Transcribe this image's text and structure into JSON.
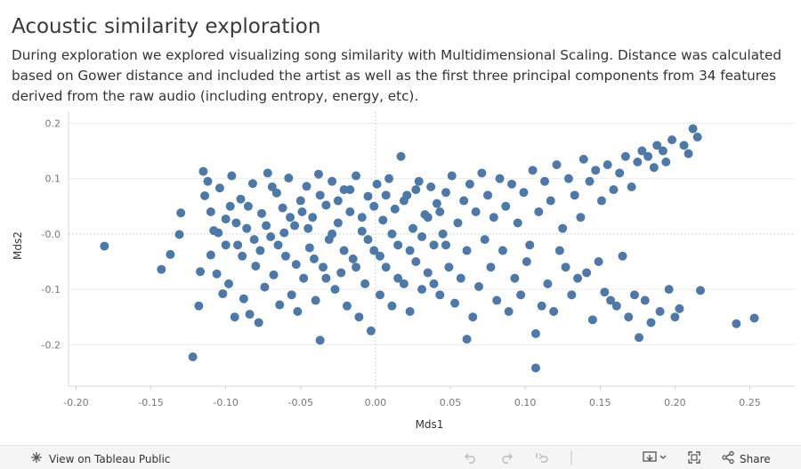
{
  "title": "Acoustic similarity exploration",
  "subtitle": "During exploration we  explored visualizing song similarity with Multidimensional Scaling. Distance was calculated based on Gower distance and included the artist as well as the first three principal components from 34 features derived from the raw audio (including entropy, energy, etc).",
  "footer": {
    "view_label": "View on Tableau Public",
    "share_label": "Share",
    "icons": [
      "tableau-icon",
      "undo-icon",
      "redo-icon",
      "revert-icon",
      "download-icon",
      "fullscreen-icon",
      "share-icon"
    ]
  },
  "colors": {
    "point": "#4e79a7",
    "grid": "#ebebeb",
    "zero": "#d0d0d0"
  },
  "chart_data": {
    "type": "scatter",
    "xlabel": "Mds1",
    "ylabel": "Mds2",
    "xlim": [
      -0.205,
      0.28
    ],
    "ylim": [
      -0.275,
      0.22
    ],
    "xticks": [
      -0.2,
      -0.15,
      -0.1,
      -0.05,
      0.0,
      0.05,
      0.1,
      0.15,
      0.2,
      0.25
    ],
    "xtick_labels": [
      "-0.20",
      "-0.15",
      "-0.10",
      "-0.05",
      "0.00",
      "0.05",
      "0.10",
      "0.15",
      "0.20",
      "0.25"
    ],
    "yticks": [
      0.2,
      0.1,
      0.0,
      -0.1,
      -0.2
    ],
    "ytick_labels": [
      "0.2",
      "0.1",
      "-0.0",
      "-0.1",
      "-0.2"
    ],
    "grid": true,
    "points": [
      [
        -0.181,
        -0.022
      ],
      [
        -0.143,
        -0.064
      ],
      [
        -0.137,
        -0.037
      ],
      [
        -0.131,
        -0.001
      ],
      [
        -0.13,
        0.038
      ],
      [
        -0.122,
        -0.222
      ],
      [
        -0.118,
        -0.13
      ],
      [
        -0.117,
        -0.068
      ],
      [
        -0.115,
        0.113
      ],
      [
        -0.114,
        0.069
      ],
      [
        -0.112,
        0.095
      ],
      [
        -0.11,
        -0.038
      ],
      [
        -0.108,
        0.006
      ],
      [
        -0.106,
        -0.072
      ],
      [
        -0.104,
        0.083
      ],
      [
        -0.102,
        -0.108
      ],
      [
        -0.1,
        0.027
      ],
      [
        -0.098,
        -0.09
      ],
      [
        -0.096,
        0.105
      ],
      [
        -0.094,
        -0.15
      ],
      [
        -0.092,
        -0.02
      ],
      [
        -0.09,
        0.063
      ],
      [
        -0.088,
        -0.117
      ],
      [
        -0.086,
        0.01
      ],
      [
        -0.084,
        -0.145
      ],
      [
        -0.082,
        0.091
      ],
      [
        -0.08,
        -0.058
      ],
      [
        -0.078,
        -0.16
      ],
      [
        -0.076,
        0.037
      ],
      [
        -0.074,
        -0.096
      ],
      [
        -0.072,
        0.11
      ],
      [
        -0.07,
        -0.005
      ],
      [
        -0.068,
        -0.074
      ],
      [
        -0.066,
        0.074
      ],
      [
        -0.064,
        -0.128
      ],
      [
        -0.062,
        0.047
      ],
      [
        -0.06,
        -0.04
      ],
      [
        -0.058,
        0.101
      ],
      [
        -0.056,
        -0.11
      ],
      [
        -0.054,
        0.015
      ],
      [
        -0.052,
        -0.14
      ],
      [
        -0.05,
        0.06
      ],
      [
        -0.048,
        -0.08
      ],
      [
        -0.046,
        0.086
      ],
      [
        -0.044,
        -0.025
      ],
      [
        -0.042,
        0.03
      ],
      [
        -0.04,
        -0.12
      ],
      [
        -0.038,
        0.108
      ],
      [
        -0.037,
        -0.192
      ],
      [
        -0.035,
        -0.06
      ],
      [
        -0.033,
        0.052
      ],
      [
        -0.031,
        -0.01
      ],
      [
        -0.029,
        0.095
      ],
      [
        -0.027,
        -0.1
      ],
      [
        -0.025,
        0.02
      ],
      [
        -0.023,
        -0.07
      ],
      [
        -0.021,
        0.08
      ],
      [
        -0.019,
        -0.13
      ],
      [
        -0.017,
        0.04
      ],
      [
        -0.015,
        -0.045
      ],
      [
        -0.013,
        0.105
      ],
      [
        -0.011,
        -0.15
      ],
      [
        -0.009,
        0.005
      ],
      [
        -0.007,
        -0.09
      ],
      [
        -0.005,
        0.068
      ],
      [
        -0.003,
        -0.175
      ],
      [
        -0.001,
        -0.03
      ],
      [
        0.001,
        0.09
      ],
      [
        0.003,
        -0.11
      ],
      [
        0.005,
        0.025
      ],
      [
        0.007,
        -0.06
      ],
      [
        0.009,
        0.1
      ],
      [
        0.011,
        -0.13
      ],
      [
        0.013,
        0.045
      ],
      [
        0.015,
        -0.02
      ],
      [
        0.017,
        0.14
      ],
      [
        0.019,
        -0.09
      ],
      [
        0.021,
        0.07
      ],
      [
        0.023,
        -0.14
      ],
      [
        0.025,
        0.01
      ],
      [
        0.027,
        -0.05
      ],
      [
        0.029,
        0.095
      ],
      [
        0.031,
        -0.1
      ],
      [
        0.033,
        0.035
      ],
      [
        0.035,
        -0.07
      ],
      [
        0.037,
        0.085
      ],
      [
        0.039,
        -0.02
      ],
      [
        0.041,
        0.055
      ],
      [
        0.043,
        -0.11
      ],
      [
        0.045,
        0.0
      ],
      [
        0.047,
        0.075
      ],
      [
        0.049,
        -0.06
      ],
      [
        0.051,
        0.105
      ],
      [
        0.053,
        -0.125
      ],
      [
        0.055,
        0.02
      ],
      [
        0.057,
        -0.08
      ],
      [
        0.059,
        0.06
      ],
      [
        0.061,
        -0.03
      ],
      [
        0.063,
        0.09
      ],
      [
        0.065,
        -0.15
      ],
      [
        0.061,
        -0.19
      ],
      [
        0.067,
        0.04
      ],
      [
        0.069,
        -0.095
      ],
      [
        0.071,
        0.11
      ],
      [
        0.073,
        -0.01
      ],
      [
        0.075,
        0.07
      ],
      [
        0.077,
        -0.06
      ],
      [
        0.079,
        0.03
      ],
      [
        0.081,
        -0.12
      ],
      [
        0.083,
        0.1
      ],
      [
        0.085,
        -0.03
      ],
      [
        0.087,
        0.05
      ],
      [
        0.089,
        -0.14
      ],
      [
        0.091,
        0.09
      ],
      [
        0.093,
        -0.08
      ],
      [
        0.095,
        0.02
      ],
      [
        0.097,
        -0.11
      ],
      [
        0.099,
        0.075
      ],
      [
        0.101,
        -0.05
      ],
      [
        0.103,
        -0.02
      ],
      [
        0.105,
        0.115
      ],
      [
        0.107,
        -0.242
      ],
      [
        0.107,
        -0.18
      ],
      [
        0.109,
        0.04
      ],
      [
        0.111,
        -0.13
      ],
      [
        0.113,
        0.095
      ],
      [
        0.115,
        -0.09
      ],
      [
        0.117,
        0.06
      ],
      [
        0.119,
        -0.14
      ],
      [
        0.121,
        0.125
      ],
      [
        0.123,
        -0.03
      ],
      [
        0.125,
        0.01
      ],
      [
        0.127,
        -0.06
      ],
      [
        0.129,
        0.1
      ],
      [
        0.131,
        -0.11
      ],
      [
        0.133,
        0.07
      ],
      [
        0.135,
        -0.08
      ],
      [
        0.137,
        0.03
      ],
      [
        0.139,
        0.135
      ],
      [
        0.141,
        -0.07
      ],
      [
        0.143,
        0.095
      ],
      [
        0.145,
        -0.155
      ],
      [
        0.147,
        0.115
      ],
      [
        0.149,
        -0.05
      ],
      [
        0.151,
        0.06
      ],
      [
        0.153,
        -0.105
      ],
      [
        0.155,
        0.125
      ],
      [
        0.157,
        -0.12
      ],
      [
        0.159,
        0.08
      ],
      [
        0.161,
        -0.13
      ],
      [
        0.163,
        0.11
      ],
      [
        0.165,
        -0.04
      ],
      [
        0.167,
        0.14
      ],
      [
        0.169,
        -0.15
      ],
      [
        0.171,
        0.085
      ],
      [
        0.173,
        -0.11
      ],
      [
        0.175,
        0.13
      ],
      [
        0.176,
        -0.187
      ],
      [
        0.178,
        0.15
      ],
      [
        0.18,
        -0.12
      ],
      [
        0.182,
        0.14
      ],
      [
        0.184,
        -0.16
      ],
      [
        0.186,
        0.12
      ],
      [
        0.188,
        0.16
      ],
      [
        0.19,
        -0.14
      ],
      [
        0.192,
        0.15
      ],
      [
        0.194,
        0.13
      ],
      [
        0.196,
        -0.1
      ],
      [
        0.198,
        0.17
      ],
      [
        0.2,
        -0.15
      ],
      [
        0.203,
        -0.135
      ],
      [
        0.206,
        0.16
      ],
      [
        0.209,
        0.145
      ],
      [
        0.212,
        0.19
      ],
      [
        0.215,
        0.175
      ],
      [
        0.217,
        -0.102
      ],
      [
        0.241,
        -0.162
      ],
      [
        0.253,
        -0.152
      ],
      [
        -0.11,
        0.04
      ],
      [
        -0.105,
        0.002
      ],
      [
        -0.1,
        -0.02
      ],
      [
        -0.097,
        0.05
      ],
      [
        -0.093,
        0.02
      ],
      [
        -0.089,
        -0.04
      ],
      [
        -0.085,
        0.05
      ],
      [
        -0.081,
        -0.01
      ],
      [
        -0.077,
        -0.03
      ],
      [
        -0.073,
        0.015
      ],
      [
        -0.069,
        0.085
      ],
      [
        -0.065,
        -0.02
      ],
      [
        -0.061,
        0.002
      ],
      [
        -0.057,
        0.03
      ],
      [
        -0.053,
        -0.055
      ],
      [
        -0.049,
        0.04
      ],
      [
        -0.045,
        0.01
      ],
      [
        -0.041,
        -0.045
      ],
      [
        -0.037,
        0.07
      ],
      [
        -0.033,
        -0.08
      ],
      [
        -0.029,
        0.0
      ],
      [
        -0.025,
        0.06
      ],
      [
        -0.021,
        -0.03
      ],
      [
        -0.017,
        0.08
      ],
      [
        -0.013,
        -0.06
      ],
      [
        -0.009,
        0.03
      ],
      [
        -0.005,
        -0.01
      ],
      [
        -0.001,
        0.05
      ],
      [
        0.003,
        -0.04
      ],
      [
        0.007,
        0.07
      ],
      [
        0.011,
        0.0
      ],
      [
        0.015,
        -0.08
      ],
      [
        0.019,
        0.06
      ],
      [
        0.023,
        -0.03
      ],
      [
        0.027,
        0.08
      ],
      [
        0.031,
        -0.005
      ],
      [
        0.035,
        0.03
      ],
      [
        0.039,
        -0.09
      ],
      [
        0.043,
        0.04
      ],
      [
        0.047,
        -0.02
      ]
    ]
  }
}
